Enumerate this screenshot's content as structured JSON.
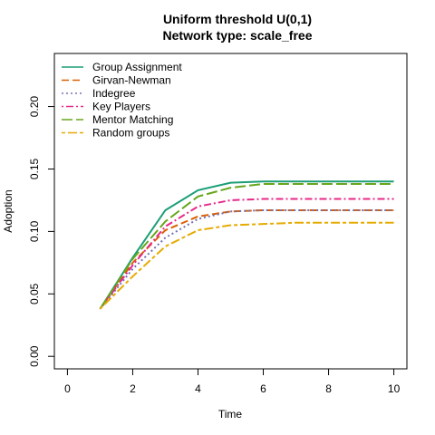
{
  "chart_data": {
    "type": "line",
    "title": "Uniform threshold U(0,1)",
    "subtitle": "Network type: scale_free",
    "xlabel": "Time",
    "ylabel": "Adoption",
    "xlim": [
      -0.4,
      10.4
    ],
    "ylim": [
      -0.01,
      0.2425
    ],
    "xticks": [
      0,
      2,
      4,
      6,
      8,
      10
    ],
    "xtick_labels": [
      "0",
      "2",
      "4",
      "6",
      "8",
      "10"
    ],
    "yticks": [
      0.0,
      0.05,
      0.1,
      0.15,
      0.2
    ],
    "ytick_labels": [
      "0.00",
      "0.05",
      "0.10",
      "0.15",
      "0.20"
    ],
    "grid": false,
    "legend_position": "top-left",
    "x": [
      1,
      2,
      3,
      4,
      5,
      6,
      7,
      8,
      9,
      10
    ],
    "series": [
      {
        "name": "Group Assignment",
        "color": "#1b9e77",
        "dash": "solid",
        "values": [
          0.038,
          0.079,
          0.117,
          0.133,
          0.139,
          0.14,
          0.14,
          0.14,
          0.14,
          0.14
        ]
      },
      {
        "name": "Girvan-Newman",
        "color": "#d95f02",
        "dash": "dashed",
        "values": [
          0.038,
          0.075,
          0.101,
          0.112,
          0.116,
          0.117,
          0.117,
          0.117,
          0.117,
          0.117
        ]
      },
      {
        "name": "Indegree",
        "color": "#7570b3",
        "dash": "dotted",
        "values": [
          0.038,
          0.07,
          0.095,
          0.11,
          0.116,
          0.117,
          0.117,
          0.117,
          0.117,
          0.117
        ]
      },
      {
        "name": "Key Players",
        "color": "#e7298a",
        "dash": "dotdash",
        "values": [
          0.038,
          0.073,
          0.104,
          0.12,
          0.125,
          0.126,
          0.126,
          0.126,
          0.126,
          0.126
        ]
      },
      {
        "name": "Mentor Matching",
        "color": "#66a61e",
        "dash": "longdash",
        "values": [
          0.038,
          0.078,
          0.108,
          0.128,
          0.135,
          0.138,
          0.138,
          0.138,
          0.138,
          0.138
        ]
      },
      {
        "name": "Random groups",
        "color": "#e6ab02",
        "dash": "twodash",
        "values": [
          0.038,
          0.064,
          0.088,
          0.101,
          0.105,
          0.106,
          0.107,
          0.107,
          0.107,
          0.107
        ]
      }
    ]
  }
}
